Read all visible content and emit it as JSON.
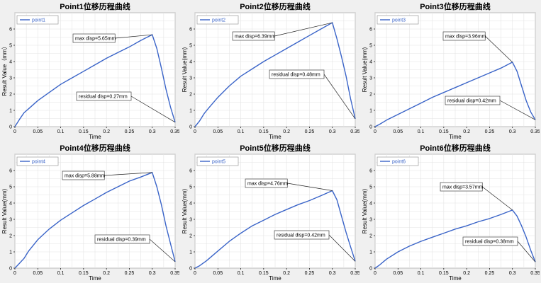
{
  "line_color": "#3a64c8",
  "chart_data": [
    {
      "type": "line",
      "title": "Point1位移历程曲线",
      "xlabel": "Time",
      "ylabel": "Result Value（mm）",
      "xlim": [
        0,
        0.35
      ],
      "ylim": [
        0,
        7
      ],
      "xticks": [
        0,
        0.05,
        0.1,
        0.15,
        0.2,
        0.25,
        0.3,
        0.35
      ],
      "xtick_labels": [
        "0",
        "0.05",
        "0.1",
        "0.15",
        "0.2",
        "0.25",
        "0.3",
        "0.35"
      ],
      "yticks": [
        0,
        1,
        2,
        3,
        4,
        5,
        6
      ],
      "grid": true,
      "legend_position": "top-left",
      "series": [
        {
          "name": "point1",
          "x": [
            0,
            0.01,
            0.02,
            0.03,
            0.05,
            0.075,
            0.1,
            0.125,
            0.15,
            0.175,
            0.2,
            0.225,
            0.25,
            0.275,
            0.3,
            0.31,
            0.32,
            0.33,
            0.34,
            0.35
          ],
          "y": [
            0,
            0.45,
            0.85,
            1.1,
            1.6,
            2.1,
            2.6,
            3.0,
            3.4,
            3.8,
            4.2,
            4.55,
            4.9,
            5.3,
            5.65,
            4.8,
            3.6,
            2.3,
            1.2,
            0.27
          ]
        }
      ],
      "annotations": [
        {
          "text": "max disp=5.65mm",
          "x": 0.3,
          "y": 5.65
        },
        {
          "text": "residual disp=0.27mm",
          "x": 0.35,
          "y": 0.27
        }
      ]
    },
    {
      "type": "line",
      "title": "Point2位移历程曲线",
      "xlabel": "Time",
      "ylabel": "Result Value(mm)",
      "xlim": [
        0,
        0.35
      ],
      "ylim": [
        0,
        7
      ],
      "xticks": [
        0,
        0.05,
        0.1,
        0.15,
        0.2,
        0.25,
        0.3,
        0.35
      ],
      "xtick_labels": [
        "0",
        "0.05",
        "0.1",
        "0.15",
        "0.2",
        "0.25",
        "0.3",
        "0.35"
      ],
      "yticks": [
        0,
        1,
        2,
        3,
        4,
        5,
        6
      ],
      "grid": true,
      "legend_position": "top-left",
      "series": [
        {
          "name": "point2",
          "x": [
            0,
            0.01,
            0.02,
            0.03,
            0.05,
            0.075,
            0.1,
            0.125,
            0.15,
            0.175,
            0.2,
            0.225,
            0.25,
            0.275,
            0.3,
            0.31,
            0.32,
            0.33,
            0.34,
            0.35
          ],
          "y": [
            0,
            0.35,
            0.8,
            1.15,
            1.8,
            2.5,
            3.1,
            3.55,
            4.0,
            4.4,
            4.8,
            5.2,
            5.6,
            6.0,
            6.39,
            5.4,
            4.3,
            3.1,
            1.7,
            0.48
          ]
        }
      ],
      "annotations": [
        {
          "text": "max disp=6.39mm",
          "x": 0.3,
          "y": 6.39
        },
        {
          "text": "residual disp=0.48mm",
          "x": 0.35,
          "y": 0.48
        }
      ]
    },
    {
      "type": "line",
      "title": "Point3位移历程曲线",
      "xlabel": "Time",
      "ylabel": "Result Value(mm)",
      "xlim": [
        0,
        0.35
      ],
      "ylim": [
        0,
        7
      ],
      "xticks": [
        0,
        0.05,
        0.1,
        0.15,
        0.2,
        0.25,
        0.3,
        0.35
      ],
      "xtick_labels": [
        "0",
        "0.05",
        "0.1",
        "0.15",
        "0.2",
        "0.25",
        "0.3",
        "0.35"
      ],
      "yticks": [
        0,
        1,
        2,
        3,
        4,
        5,
        6
      ],
      "grid": true,
      "legend_position": "top-left",
      "series": [
        {
          "name": "point3",
          "x": [
            0,
            0.01,
            0.025,
            0.05,
            0.075,
            0.1,
            0.125,
            0.15,
            0.175,
            0.2,
            0.225,
            0.25,
            0.275,
            0.3,
            0.31,
            0.32,
            0.33,
            0.34,
            0.35
          ],
          "y": [
            0,
            0.15,
            0.4,
            0.75,
            1.1,
            1.45,
            1.8,
            2.1,
            2.4,
            2.7,
            3.0,
            3.3,
            3.6,
            3.96,
            3.4,
            2.5,
            1.6,
            0.9,
            0.42
          ]
        }
      ],
      "annotations": [
        {
          "text": "max disp=3.96mm",
          "x": 0.3,
          "y": 3.96
        },
        {
          "text": "residual disp=0.42mm",
          "x": 0.35,
          "y": 0.42
        }
      ]
    },
    {
      "type": "line",
      "title": "Point4位移历程曲线",
      "xlabel": "Time",
      "ylabel": "Result Value(mm)",
      "xlim": [
        0,
        0.35
      ],
      "ylim": [
        0,
        7
      ],
      "xticks": [
        0,
        0.05,
        0.1,
        0.15,
        0.2,
        0.25,
        0.3,
        0.35
      ],
      "xtick_labels": [
        "0",
        "0.05",
        "0.1",
        "0.15",
        "0.2",
        "0.25",
        "0.3",
        "0.35"
      ],
      "yticks": [
        0,
        1,
        2,
        3,
        4,
        5,
        6
      ],
      "grid": true,
      "legend_position": "top-left",
      "series": [
        {
          "name": "point4",
          "x": [
            0,
            0.01,
            0.02,
            0.03,
            0.05,
            0.075,
            0.1,
            0.125,
            0.15,
            0.175,
            0.2,
            0.225,
            0.25,
            0.275,
            0.3,
            0.31,
            0.32,
            0.33,
            0.34,
            0.35
          ],
          "y": [
            0,
            0.3,
            0.6,
            1.05,
            1.75,
            2.4,
            2.95,
            3.4,
            3.85,
            4.25,
            4.65,
            5.0,
            5.35,
            5.6,
            5.88,
            5.0,
            3.9,
            2.6,
            1.5,
            0.39
          ]
        }
      ],
      "annotations": [
        {
          "text": "max disp=5.88mm",
          "x": 0.3,
          "y": 5.88
        },
        {
          "text": "residual disp=0.39mm",
          "x": 0.35,
          "y": 0.39
        }
      ]
    },
    {
      "type": "line",
      "title": "Point5位移历程曲线",
      "xlabel": "Time",
      "ylabel": "Result Value(mm)",
      "xlim": [
        0,
        0.35
      ],
      "ylim": [
        0,
        7
      ],
      "xticks": [
        0,
        0.05,
        0.1,
        0.15,
        0.2,
        0.25,
        0.3,
        0.35
      ],
      "xtick_labels": [
        "0",
        "0.05",
        "0.1",
        "0.15",
        "0.2",
        "0.25",
        "0.3",
        "0.35"
      ],
      "yticks": [
        0,
        1,
        2,
        3,
        4,
        5,
        6
      ],
      "grid": true,
      "legend_position": "top-left",
      "series": [
        {
          "name": "point5",
          "x": [
            0,
            0.01,
            0.025,
            0.05,
            0.075,
            0.1,
            0.125,
            0.15,
            0.175,
            0.2,
            0.225,
            0.25,
            0.275,
            0.3,
            0.31,
            0.32,
            0.33,
            0.34,
            0.35
          ],
          "y": [
            0,
            0.15,
            0.45,
            1.05,
            1.65,
            2.15,
            2.6,
            2.95,
            3.3,
            3.6,
            3.9,
            4.15,
            4.45,
            4.76,
            4.2,
            3.2,
            2.2,
            1.3,
            0.42
          ]
        }
      ],
      "annotations": [
        {
          "text": "max disp=4.76mm",
          "x": 0.3,
          "y": 4.76
        },
        {
          "text": "residual disp=0.42mm",
          "x": 0.35,
          "y": 0.42
        }
      ]
    },
    {
      "type": "line",
      "title": "Point6位移历程曲线",
      "xlabel": "Time",
      "ylabel": "Result Value(mm)",
      "xlim": [
        0,
        0.35
      ],
      "ylim": [
        0,
        7
      ],
      "xticks": [
        0,
        0.05,
        0.1,
        0.15,
        0.2,
        0.25,
        0.3,
        0.35
      ],
      "xtick_labels": [
        "0",
        "0.05",
        "0.1",
        "0.15",
        "0.2",
        "0.25",
        "0.3",
        "0.35"
      ],
      "yticks": [
        0,
        1,
        2,
        3,
        4,
        5,
        6
      ],
      "grid": true,
      "legend_position": "top-left",
      "series": [
        {
          "name": "point6",
          "x": [
            0,
            0.01,
            0.025,
            0.05,
            0.075,
            0.1,
            0.125,
            0.15,
            0.175,
            0.2,
            0.225,
            0.25,
            0.275,
            0.3,
            0.31,
            0.32,
            0.33,
            0.34,
            0.35
          ],
          "y": [
            0,
            0.2,
            0.55,
            1.0,
            1.35,
            1.65,
            1.9,
            2.15,
            2.4,
            2.6,
            2.85,
            3.05,
            3.3,
            3.57,
            3.2,
            2.6,
            1.9,
            1.1,
            0.38
          ]
        }
      ],
      "annotations": [
        {
          "text": "max disp=3.57mm",
          "x": 0.3,
          "y": 3.57
        },
        {
          "text": "residual disp=0.38mm",
          "x": 0.35,
          "y": 0.38
        }
      ]
    }
  ]
}
